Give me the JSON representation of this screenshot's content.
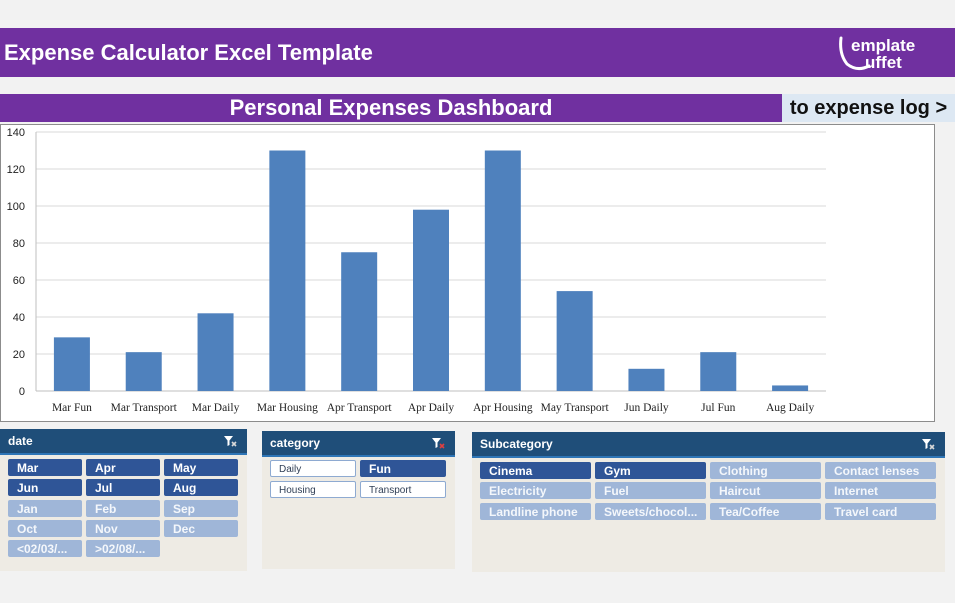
{
  "header": {
    "title": "Expense Calculator Excel Template",
    "logo_text": "template buffet"
  },
  "dashboard": {
    "title": "Personal Expenses Dashboard",
    "link_label": "to expense log >"
  },
  "chart_data": {
    "type": "bar",
    "categories": [
      "Mar Fun",
      "Mar Transport",
      "Mar Daily",
      "Mar Housing",
      "Apr Transport",
      "Apr Daily",
      "Apr Housing",
      "May Transport",
      "Jun Daily",
      "Jul Fun",
      "Aug Daily"
    ],
    "values": [
      29,
      21,
      42,
      130,
      75,
      98,
      130,
      54,
      12,
      21,
      3
    ],
    "ylim": [
      0,
      140
    ],
    "yticks": [
      0,
      20,
      40,
      60,
      80,
      100,
      120,
      140
    ],
    "grid": true,
    "legend": "none",
    "bar_color": "#4f81bd"
  },
  "slicers": {
    "date": {
      "title": "date",
      "items": [
        {
          "label": "Mar",
          "state": "sel"
        },
        {
          "label": "Apr",
          "state": "sel"
        },
        {
          "label": "May",
          "state": "sel"
        },
        {
          "label": "Jun",
          "state": "sel"
        },
        {
          "label": "Jul",
          "state": "sel"
        },
        {
          "label": "Aug",
          "state": "sel"
        },
        {
          "label": "Jan",
          "state": "unsel"
        },
        {
          "label": "Feb",
          "state": "unsel"
        },
        {
          "label": "Sep",
          "state": "unsel"
        },
        {
          "label": "Oct",
          "state": "unsel"
        },
        {
          "label": "Nov",
          "state": "unsel"
        },
        {
          "label": "Dec",
          "state": "unsel"
        },
        {
          "label": "<02/03/...",
          "state": "unsel"
        },
        {
          "label": ">02/08/...",
          "state": "unsel"
        }
      ]
    },
    "category": {
      "title": "category",
      "items": [
        {
          "label": "Daily",
          "state": "outl"
        },
        {
          "label": "Fun",
          "state": "sel"
        },
        {
          "label": "Housing",
          "state": "outl"
        },
        {
          "label": "Transport",
          "state": "outl"
        }
      ]
    },
    "subcategory": {
      "title": "Subcategory",
      "items": [
        {
          "label": "Cinema",
          "state": "sel"
        },
        {
          "label": "Gym",
          "state": "sel"
        },
        {
          "label": "Clothing",
          "state": "unsel"
        },
        {
          "label": "Contact lenses",
          "state": "unsel"
        },
        {
          "label": "Electricity",
          "state": "unsel"
        },
        {
          "label": "Fuel",
          "state": "unsel"
        },
        {
          "label": "Haircut",
          "state": "unsel"
        },
        {
          "label": "Internet",
          "state": "unsel"
        },
        {
          "label": "Landline phone",
          "state": "unsel"
        },
        {
          "label": "Sweets/chocol...",
          "state": "unsel"
        },
        {
          "label": "Tea/Coffee",
          "state": "unsel"
        },
        {
          "label": "Travel card",
          "state": "unsel"
        }
      ]
    }
  }
}
